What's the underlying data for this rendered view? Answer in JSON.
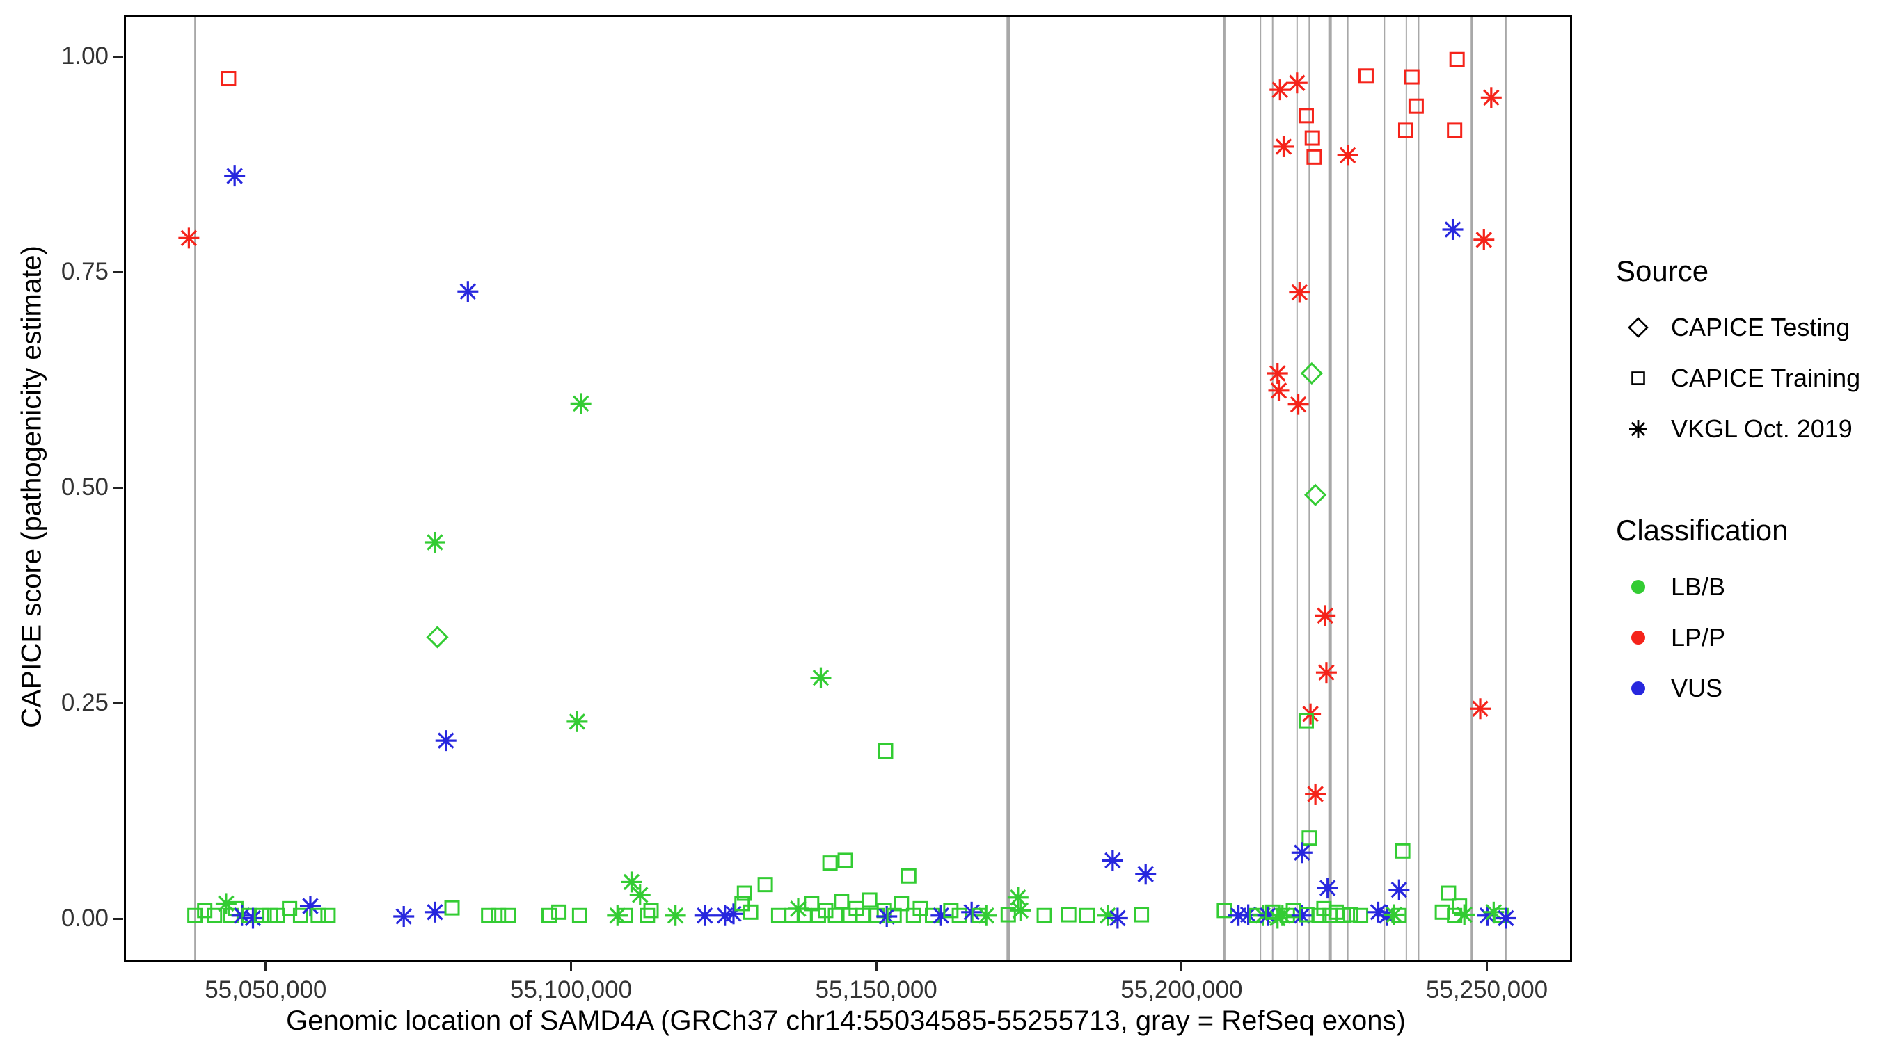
{
  "legend": {
    "source": {
      "title": "Source",
      "items": [
        {
          "label": "CAPICE Testing",
          "symbol": "diamond"
        },
        {
          "label": "CAPICE Training",
          "symbol": "square"
        },
        {
          "label": "VKGL Oct. 2019",
          "symbol": "asterisk"
        }
      ]
    },
    "classification": {
      "title": "Classification",
      "items": [
        {
          "label": "LB/B",
          "color": "#33cc33"
        },
        {
          "label": "LP/P",
          "color": "#f5231a"
        },
        {
          "label": "VUS",
          "color": "#2727de"
        }
      ]
    }
  },
  "chart_data": {
    "type": "scatter",
    "title": "",
    "xlabel": "Genomic location of SAMD4A (GRCh37 chr14:55034585-55255713, gray = RefSeq exons)",
    "ylabel": "CAPICE score (pathogenicity estimate)",
    "xlim": [
      55027000,
      55263500
    ],
    "ylim": [
      -0.047,
      1.046
    ],
    "grid": false,
    "legend_position": "right",
    "x_ticks": [
      {
        "value": 55050000,
        "label": "55,050,000"
      },
      {
        "value": 55100000,
        "label": "55,100,000"
      },
      {
        "value": 55150000,
        "label": "55,150,000"
      },
      {
        "value": 55200000,
        "label": "55,200,000"
      },
      {
        "value": 55250000,
        "label": "55,250,000"
      }
    ],
    "y_ticks": [
      {
        "value": 0.0,
        "label": "0.00"
      },
      {
        "value": 0.25,
        "label": "0.25"
      },
      {
        "value": 0.5,
        "label": "0.50"
      },
      {
        "value": 0.75,
        "label": "0.75"
      },
      {
        "value": 1.0,
        "label": "1.00"
      }
    ],
    "colors": {
      "LB/B": "#33cc33",
      "LP/P": "#f5231a",
      "VUS": "#2727de"
    },
    "symbols": {
      "testing": "diamond",
      "training": "square",
      "vkgl": "asterisk"
    },
    "source_labels": {
      "testing": "CAPICE Testing",
      "training": "CAPICE Training",
      "vkgl": "VKGL Oct. 2019"
    },
    "exon_line_color": "#a8a8a8",
    "exon_lines": [
      [
        55038300,
        2
      ],
      [
        55171500,
        5
      ],
      [
        55206900,
        3
      ],
      [
        55212800,
        2
      ],
      [
        55214800,
        2
      ],
      [
        55218800,
        2
      ],
      [
        55220800,
        2
      ],
      [
        55224200,
        5
      ],
      [
        55227100,
        2
      ],
      [
        55233100,
        2
      ],
      [
        55236700,
        2
      ],
      [
        55238700,
        2
      ],
      [
        55247400,
        3
      ],
      [
        55253000,
        2
      ]
    ],
    "points": [
      [
        55037300,
        0.79,
        "LP/P",
        "vkgl"
      ],
      [
        55043800,
        0.975,
        "LP/P",
        "training"
      ],
      [
        55044800,
        0.862,
        "VUS",
        "vkgl"
      ],
      [
        55083000,
        0.728,
        "VUS",
        "vkgl"
      ],
      [
        55101500,
        0.598,
        "LB/B",
        "vkgl"
      ],
      [
        55077600,
        0.437,
        "LB/B",
        "vkgl"
      ],
      [
        55078000,
        0.327,
        "LB/B",
        "testing"
      ],
      [
        55079400,
        0.207,
        "VUS",
        "vkgl"
      ],
      [
        55100900,
        0.229,
        "LB/B",
        "vkgl"
      ],
      [
        55140800,
        0.28,
        "LB/B",
        "vkgl"
      ],
      [
        55151400,
        0.195,
        "LB/B",
        "training"
      ],
      [
        55188600,
        0.068,
        "VUS",
        "vkgl"
      ],
      [
        55194000,
        0.052,
        "VUS",
        "vkgl"
      ],
      [
        55216000,
        0.962,
        "LP/P",
        "vkgl"
      ],
      [
        55218800,
        0.97,
        "LP/P",
        "vkgl"
      ],
      [
        55220300,
        0.932,
        "LP/P",
        "training"
      ],
      [
        55221300,
        0.906,
        "LP/P",
        "training"
      ],
      [
        55221600,
        0.884,
        "LP/P",
        "training"
      ],
      [
        55216600,
        0.896,
        "LP/P",
        "vkgl"
      ],
      [
        55230100,
        0.978,
        "LP/P",
        "training"
      ],
      [
        55227100,
        0.886,
        "LP/P",
        "vkgl"
      ],
      [
        55237600,
        0.977,
        "LP/P",
        "training"
      ],
      [
        55238300,
        0.943,
        "LP/P",
        "training"
      ],
      [
        55236600,
        0.915,
        "LP/P",
        "training"
      ],
      [
        55245000,
        0.997,
        "LP/P",
        "training"
      ],
      [
        55244600,
        0.915,
        "LP/P",
        "training"
      ],
      [
        55250600,
        0.953,
        "LP/P",
        "vkgl"
      ],
      [
        55244300,
        0.8,
        "VUS",
        "vkgl"
      ],
      [
        55249400,
        0.788,
        "LP/P",
        "vkgl"
      ],
      [
        55219200,
        0.727,
        "LP/P",
        "vkgl"
      ],
      [
        55215600,
        0.633,
        "LP/P",
        "vkgl"
      ],
      [
        55215800,
        0.613,
        "LP/P",
        "vkgl"
      ],
      [
        55221200,
        0.633,
        "LB/B",
        "testing"
      ],
      [
        55219000,
        0.597,
        "LP/P",
        "vkgl"
      ],
      [
        55221800,
        0.492,
        "LB/B",
        "testing"
      ],
      [
        55223400,
        0.352,
        "LP/P",
        "vkgl"
      ],
      [
        55223600,
        0.286,
        "LP/P",
        "vkgl"
      ],
      [
        55221000,
        0.238,
        "LP/P",
        "vkgl"
      ],
      [
        55220300,
        0.23,
        "LB/B",
        "training"
      ],
      [
        55221800,
        0.145,
        "LP/P",
        "vkgl"
      ],
      [
        55220800,
        0.094,
        "LB/B",
        "training"
      ],
      [
        55219600,
        0.077,
        "VUS",
        "vkgl"
      ],
      [
        55223800,
        0.036,
        "VUS",
        "vkgl"
      ],
      [
        55235500,
        0.034,
        "VUS",
        "vkgl"
      ],
      [
        55236100,
        0.079,
        "LB/B",
        "training"
      ],
      [
        55248800,
        0.244,
        "LP/P",
        "vkgl"
      ],
      [
        55038300,
        0.004,
        "LB/B",
        "training"
      ],
      [
        55039900,
        0.01,
        "LB/B",
        "training"
      ],
      [
        55041500,
        0.004,
        "LB/B",
        "training"
      ],
      [
        55043400,
        0.018,
        "LB/B",
        "vkgl"
      ],
      [
        55044200,
        0.004,
        "LB/B",
        "training"
      ],
      [
        55045000,
        0.012,
        "LB/B",
        "training"
      ],
      [
        55046000,
        0.004,
        "VUS",
        "vkgl"
      ],
      [
        55047200,
        0.004,
        "LB/B",
        "training"
      ],
      [
        55047800,
        0.001,
        "VUS",
        "vkgl"
      ],
      [
        55049200,
        0.004,
        "LB/B",
        "training"
      ],
      [
        55050600,
        0.004,
        "LB/B",
        "training"
      ],
      [
        55051800,
        0.004,
        "LB/B",
        "training"
      ],
      [
        55053800,
        0.012,
        "LB/B",
        "training"
      ],
      [
        55055600,
        0.004,
        "LB/B",
        "training"
      ],
      [
        55057200,
        0.015,
        "VUS",
        "vkgl"
      ],
      [
        55058500,
        0.004,
        "LB/B",
        "training"
      ],
      [
        55060100,
        0.004,
        "LB/B",
        "training"
      ],
      [
        55072500,
        0.003,
        "VUS",
        "vkgl"
      ],
      [
        55077600,
        0.008,
        "VUS",
        "vkgl"
      ],
      [
        55080400,
        0.013,
        "LB/B",
        "training"
      ],
      [
        55086400,
        0.004,
        "LB/B",
        "training"
      ],
      [
        55088000,
        0.004,
        "LB/B",
        "training"
      ],
      [
        55089600,
        0.004,
        "LB/B",
        "training"
      ],
      [
        55096300,
        0.004,
        "LB/B",
        "training"
      ],
      [
        55097900,
        0.008,
        "LB/B",
        "training"
      ],
      [
        55101300,
        0.004,
        "LB/B",
        "training"
      ],
      [
        55107500,
        0.004,
        "LB/B",
        "vkgl"
      ],
      [
        55108800,
        0.004,
        "LB/B",
        "training"
      ],
      [
        55109800,
        0.043,
        "LB/B",
        "vkgl"
      ],
      [
        55111200,
        0.028,
        "LB/B",
        "vkgl"
      ],
      [
        55112400,
        0.004,
        "LB/B",
        "training"
      ],
      [
        55113000,
        0.01,
        "LB/B",
        "training"
      ],
      [
        55117000,
        0.004,
        "LB/B",
        "vkgl"
      ],
      [
        55121800,
        0.004,
        "VUS",
        "vkgl"
      ],
      [
        55125100,
        0.004,
        "VUS",
        "vkgl"
      ],
      [
        55126500,
        0.006,
        "VUS",
        "vkgl"
      ],
      [
        55127900,
        0.018,
        "LB/B",
        "training"
      ],
      [
        55128300,
        0.03,
        "LB/B",
        "training"
      ],
      [
        55129300,
        0.008,
        "LB/B",
        "training"
      ],
      [
        55131700,
        0.04,
        "LB/B",
        "training"
      ],
      [
        55133900,
        0.004,
        "LB/B",
        "training"
      ],
      [
        55136100,
        0.004,
        "LB/B",
        "training"
      ],
      [
        55137100,
        0.012,
        "LB/B",
        "vkgl"
      ],
      [
        55138100,
        0.004,
        "LB/B",
        "training"
      ],
      [
        55139300,
        0.018,
        "LB/B",
        "training"
      ],
      [
        55140400,
        0.004,
        "LB/B",
        "training"
      ],
      [
        55141600,
        0.01,
        "LB/B",
        "training"
      ],
      [
        55142300,
        0.065,
        "LB/B",
        "training"
      ],
      [
        55143200,
        0.004,
        "LB/B",
        "training"
      ],
      [
        55144200,
        0.02,
        "LB/B",
        "training"
      ],
      [
        55144800,
        0.068,
        "LB/B",
        "training"
      ],
      [
        55145600,
        0.004,
        "LB/B",
        "training"
      ],
      [
        55146600,
        0.012,
        "LB/B",
        "training"
      ],
      [
        55147600,
        0.004,
        "LB/B",
        "training"
      ],
      [
        55148800,
        0.022,
        "LB/B",
        "training"
      ],
      [
        55150000,
        0.004,
        "LB/B",
        "training"
      ],
      [
        55151200,
        0.01,
        "LB/B",
        "training"
      ],
      [
        55151600,
        0.003,
        "VUS",
        "vkgl"
      ],
      [
        55152800,
        0.004,
        "LB/B",
        "training"
      ],
      [
        55154000,
        0.018,
        "LB/B",
        "training"
      ],
      [
        55155200,
        0.05,
        "LB/B",
        "training"
      ],
      [
        55156000,
        0.004,
        "LB/B",
        "training"
      ],
      [
        55157100,
        0.012,
        "LB/B",
        "training"
      ],
      [
        55159100,
        0.004,
        "LB/B",
        "training"
      ],
      [
        55160500,
        0.004,
        "VUS",
        "vkgl"
      ],
      [
        55162100,
        0.01,
        "LB/B",
        "training"
      ],
      [
        55163500,
        0.004,
        "LB/B",
        "training"
      ],
      [
        55165500,
        0.008,
        "VUS",
        "vkgl"
      ],
      [
        55166700,
        0.004,
        "LB/B",
        "training"
      ],
      [
        55167900,
        0.004,
        "LB/B",
        "vkgl"
      ],
      [
        55171500,
        0.005,
        "LB/B",
        "training"
      ],
      [
        55173100,
        0.025,
        "LB/B",
        "vkgl"
      ],
      [
        55173500,
        0.01,
        "LB/B",
        "vkgl"
      ],
      [
        55177400,
        0.004,
        "LB/B",
        "training"
      ],
      [
        55181400,
        0.005,
        "LB/B",
        "training"
      ],
      [
        55184400,
        0.004,
        "LB/B",
        "training"
      ],
      [
        55187800,
        0.004,
        "LB/B",
        "vkgl"
      ],
      [
        55189400,
        0.001,
        "VUS",
        "vkgl"
      ],
      [
        55193300,
        0.005,
        "LB/B",
        "training"
      ],
      [
        55206900,
        0.01,
        "LB/B",
        "training"
      ],
      [
        55209200,
        0.004,
        "VUS",
        "vkgl"
      ],
      [
        55210800,
        0.005,
        "VUS",
        "vkgl"
      ],
      [
        55212200,
        0.004,
        "LB/B",
        "training"
      ],
      [
        55213200,
        0.004,
        "LB/B",
        "vkgl"
      ],
      [
        55214000,
        0.004,
        "VUS",
        "vkgl"
      ],
      [
        55214800,
        0.008,
        "LB/B",
        "training"
      ],
      [
        55215600,
        0.001,
        "LB/B",
        "vkgl"
      ],
      [
        55216400,
        0.004,
        "LB/B",
        "vkgl"
      ],
      [
        55217200,
        0.004,
        "LB/B",
        "training"
      ],
      [
        55218200,
        0.01,
        "LB/B",
        "training"
      ],
      [
        55219600,
        0.004,
        "VUS",
        "vkgl"
      ],
      [
        55220400,
        0.005,
        "LB/B",
        "training"
      ],
      [
        55222400,
        0.004,
        "LB/B",
        "training"
      ],
      [
        55223200,
        0.012,
        "LB/B",
        "training"
      ],
      [
        55224200,
        0.004,
        "LB/B",
        "training"
      ],
      [
        55225200,
        0.008,
        "LB/B",
        "training"
      ],
      [
        55226400,
        0.004,
        "LB/B",
        "training"
      ],
      [
        55227600,
        0.005,
        "LB/B",
        "training"
      ],
      [
        55229200,
        0.004,
        "LB/B",
        "training"
      ],
      [
        55232100,
        0.008,
        "VUS",
        "vkgl"
      ],
      [
        55233500,
        0.004,
        "VUS",
        "vkgl"
      ],
      [
        55234700,
        0.005,
        "LB/B",
        "vkgl"
      ],
      [
        55235500,
        0.004,
        "LB/B",
        "training"
      ],
      [
        55242600,
        0.008,
        "LB/B",
        "training"
      ],
      [
        55243600,
        0.03,
        "LB/B",
        "training"
      ],
      [
        55244600,
        0.004,
        "LB/B",
        "training"
      ],
      [
        55245400,
        0.015,
        "LB/B",
        "training"
      ],
      [
        55246200,
        0.005,
        "LB/B",
        "vkgl"
      ],
      [
        55250000,
        0.004,
        "VUS",
        "vkgl"
      ],
      [
        55251000,
        0.008,
        "LB/B",
        "vkgl"
      ],
      [
        55252200,
        0.004,
        "LB/B",
        "training"
      ],
      [
        55253000,
        0.001,
        "VUS",
        "vkgl"
      ]
    ]
  }
}
